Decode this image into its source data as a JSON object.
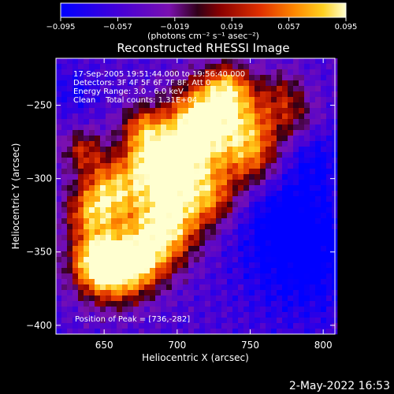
{
  "chart_data": {
    "type": "heatmap",
    "title": "Reconstructed RHESSI Image",
    "xlabel": "Heliocentric X (arcsec)",
    "ylabel": "Heliocentric Y (arcsec)",
    "xlim": [
      617,
      808
    ],
    "ylim": [
      -406,
      -218
    ],
    "x_ticks": [
      650,
      700,
      750,
      800
    ],
    "x_tick_labels": [
      "650",
      "700",
      "750",
      "800"
    ],
    "y_ticks": [
      -250,
      -300,
      -350,
      -400
    ],
    "y_tick_labels": [
      "−250",
      "−300",
      "−350",
      "−400"
    ],
    "colorbar": {
      "range": [
        -0.095,
        0.095
      ],
      "ticks": [
        -0.095,
        -0.057,
        -0.019,
        0.019,
        0.057,
        0.095
      ],
      "tick_labels": [
        "−0.095",
        "−0.057",
        "−0.019",
        "0.019",
        "0.057",
        "0.095"
      ],
      "colors": [
        "#0000ff",
        "#4400d8",
        "#7a10b0",
        "#5a0040",
        "#900000",
        "#e03000",
        "#ff8800",
        "#ffd020",
        "#ffffd0"
      ]
    },
    "annotations": [
      "17-Sep-2005 19:51:44.000 to 19:56:40.000",
      "Detectors: 3F 4F 5F 6F 7F 8F, Att 0",
      "Energy Range: 3.0 - 6.0 keV",
      "Clean    Total counts: 1.31E+04"
    ],
    "peak_label": "Position of Peak = [736,-282]",
    "peak": [
      736,
      -282
    ]
  },
  "colorbar_unit": "(photons cm⁻² s⁻¹ asec⁻²)",
  "footer_date": "2-May-2022 16:53"
}
